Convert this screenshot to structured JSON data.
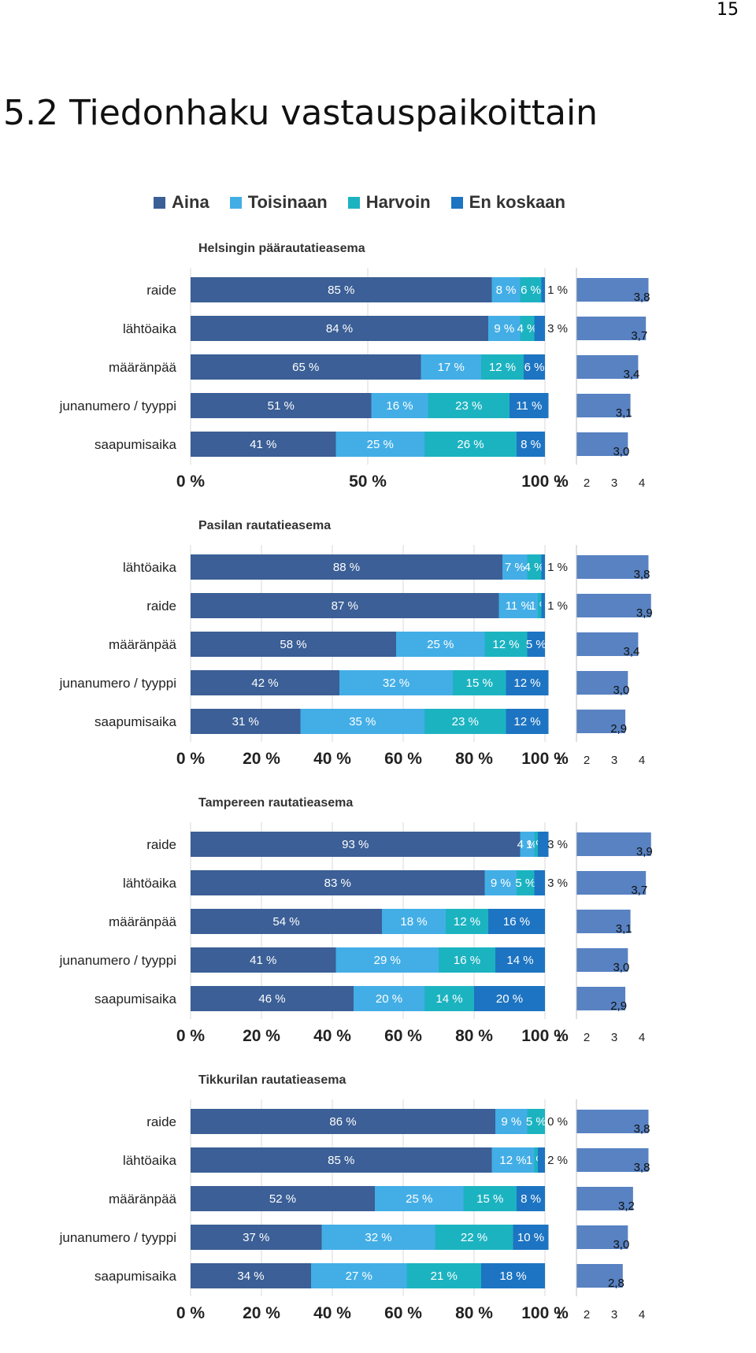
{
  "page_number": "15",
  "page_title": "5.2 Tiedonhaku vastauspaikoittain",
  "legend": [
    {
      "label": "Aina",
      "color": "#3b5f96"
    },
    {
      "label": "Toisinaan",
      "color": "#43aee6"
    },
    {
      "label": "Harvoin",
      "color": "#1cb3c1"
    },
    {
      "label": "En koskaan",
      "color": "#1d74c2"
    }
  ],
  "colors": {
    "mean_bar": "#5882c2",
    "grid": "#d9d9d9"
  },
  "chart_data": [
    {
      "type": "bar",
      "stacked": true,
      "orientation": "horizontal",
      "title": "Helsingin päärautatieasema",
      "categories": [
        "raide",
        "lähtöaika",
        "määränpää",
        "junanumero / tyyppi",
        "saapumisaika"
      ],
      "series": [
        {
          "name": "Aina",
          "values": [
            85,
            84,
            65,
            51,
            41
          ],
          "labels": [
            "85 %",
            "84 %",
            "65 %",
            "51 %",
            "41 %"
          ]
        },
        {
          "name": "Toisinaan",
          "values": [
            8,
            9,
            17,
            16,
            25
          ],
          "labels": [
            "8 %",
            "9 %",
            "17 %",
            "16 %",
            "25 %"
          ]
        },
        {
          "name": "Harvoin",
          "values": [
            6,
            4,
            12,
            23,
            26
          ],
          "labels": [
            "6 %",
            "4 %",
            "12 %",
            "23 %",
            "26 %"
          ]
        },
        {
          "name": "En koskaan",
          "values": [
            1,
            3,
            6,
            11,
            8
          ],
          "labels": [
            "1 %",
            "3 %",
            "6 %",
            "11 %",
            "8 %"
          ]
        }
      ],
      "x_ticks": [
        "0 %",
        "50 %",
        "100 %"
      ],
      "xlim": [
        0,
        100
      ],
      "means": {
        "values": [
          3.8,
          3.7,
          3.4,
          3.1,
          3.0
        ],
        "labels": [
          "3,8",
          "3,7",
          "3,4",
          "3,1",
          "3,0"
        ],
        "ticks": [
          "1",
          "2",
          "3",
          "4"
        ],
        "xlim": [
          1,
          4
        ]
      }
    },
    {
      "type": "bar",
      "stacked": true,
      "orientation": "horizontal",
      "title": "Pasilan rautatieasema",
      "categories": [
        "lähtöaika",
        "raide",
        "määränpää",
        "junanumero / tyyppi",
        "saapumisaika"
      ],
      "series": [
        {
          "name": "Aina",
          "values": [
            88,
            87,
            58,
            42,
            31
          ],
          "labels": [
            "88 %",
            "87 %",
            "58 %",
            "42 %",
            "31 %"
          ]
        },
        {
          "name": "Toisinaan",
          "values": [
            7,
            11,
            25,
            32,
            35
          ],
          "labels": [
            "7 %",
            "11 %",
            "25 %",
            "32 %",
            "35 %"
          ]
        },
        {
          "name": "Harvoin",
          "values": [
            4,
            1,
            12,
            15,
            23
          ],
          "labels": [
            "4 %",
            "1 %",
            "12 %",
            "15 %",
            "23 %"
          ]
        },
        {
          "name": "En koskaan",
          "values": [
            1,
            1,
            5,
            12,
            12
          ],
          "labels": [
            "1 %",
            "1 %",
            "5 %",
            "12 %",
            "12 %"
          ]
        }
      ],
      "x_ticks": [
        "0 %",
        "20 %",
        "40 %",
        "60 %",
        "80 %",
        "100 %"
      ],
      "xlim": [
        0,
        100
      ],
      "means": {
        "values": [
          3.8,
          3.9,
          3.4,
          3.0,
          2.9
        ],
        "labels": [
          "3,8",
          "3,9",
          "3,4",
          "3,0",
          "2,9"
        ],
        "ticks": [
          "1",
          "2",
          "3",
          "4"
        ],
        "xlim": [
          1,
          4
        ]
      }
    },
    {
      "type": "bar",
      "stacked": true,
      "orientation": "horizontal",
      "title": "Tampereen rautatieasema",
      "categories": [
        "raide",
        "lähtöaika",
        "määränpää",
        "junanumero / tyyppi",
        "saapumisaika"
      ],
      "series": [
        {
          "name": "Aina",
          "values": [
            93,
            83,
            54,
            41,
            46
          ],
          "labels": [
            "93 %",
            "83 %",
            "54 %",
            "41 %",
            "46 %"
          ]
        },
        {
          "name": "Toisinaan",
          "values": [
            4,
            9,
            18,
            29,
            20
          ],
          "labels": [
            "4 %",
            "9 %",
            "18 %",
            "29 %",
            "20 %"
          ]
        },
        {
          "name": "Harvoin",
          "values": [
            1,
            5,
            12,
            16,
            14
          ],
          "labels": [
            "1 %",
            "5 %",
            "12 %",
            "16 %",
            "14 %"
          ]
        },
        {
          "name": "En koskaan",
          "values": [
            3,
            3,
            16,
            14,
            20
          ],
          "labels": [
            "3 %",
            "3 %",
            "16 %",
            "14 %",
            "20 %"
          ]
        }
      ],
      "x_ticks": [
        "0 %",
        "20 %",
        "40 %",
        "60 %",
        "80 %",
        "100 %"
      ],
      "xlim": [
        0,
        100
      ],
      "means": {
        "values": [
          3.9,
          3.7,
          3.1,
          3.0,
          2.9
        ],
        "labels": [
          "3,9",
          "3,7",
          "3,1",
          "3,0",
          "2,9"
        ],
        "ticks": [
          "1",
          "2",
          "3",
          "4"
        ],
        "xlim": [
          1,
          4
        ]
      }
    },
    {
      "type": "bar",
      "stacked": true,
      "orientation": "horizontal",
      "title": "Tikkurilan rautatieasema",
      "categories": [
        "raide",
        "lähtöaika",
        "määränpää",
        "junanumero / tyyppi",
        "saapumisaika"
      ],
      "series": [
        {
          "name": "Aina",
          "values": [
            86,
            85,
            52,
            37,
            34
          ],
          "labels": [
            "86 %",
            "85 %",
            "52 %",
            "37 %",
            "34 %"
          ]
        },
        {
          "name": "Toisinaan",
          "values": [
            9,
            12,
            25,
            32,
            27
          ],
          "labels": [
            "9 %",
            "12 %",
            "25 %",
            "32 %",
            "27 %"
          ]
        },
        {
          "name": "Harvoin",
          "values": [
            5,
            1,
            15,
            22,
            21
          ],
          "labels": [
            "5 %",
            "1 %",
            "15 %",
            "22 %",
            "21 %"
          ]
        },
        {
          "name": "En koskaan",
          "values": [
            0,
            2,
            8,
            10,
            18
          ],
          "labels": [
            "0 %",
            "2 %",
            "8 %",
            "10 %",
            "18 %"
          ]
        }
      ],
      "x_ticks": [
        "0 %",
        "20 %",
        "40 %",
        "60 %",
        "80 %",
        "100 %"
      ],
      "xlim": [
        0,
        100
      ],
      "means": {
        "values": [
          3.8,
          3.8,
          3.2,
          3.0,
          2.8
        ],
        "labels": [
          "3,8",
          "3,8",
          "3,2",
          "3,0",
          "2,8"
        ],
        "ticks": [
          "1",
          "2",
          "3",
          "4"
        ],
        "xlim": [
          1,
          4
        ]
      }
    }
  ]
}
